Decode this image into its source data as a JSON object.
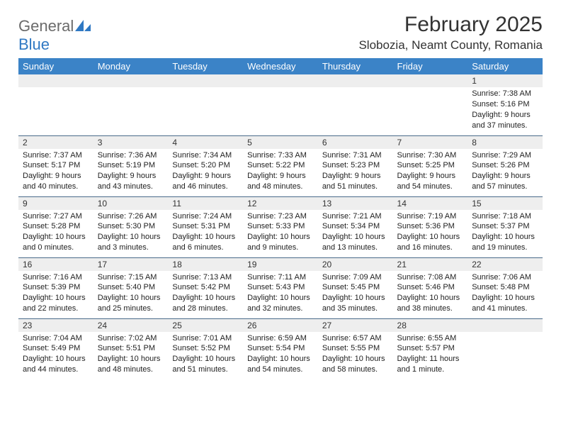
{
  "brand": {
    "general": "General",
    "blue": "Blue"
  },
  "title": {
    "month": "February 2025",
    "location": "Slobozia, Neamt County, Romania"
  },
  "colors": {
    "header_bg": "#3b83c7",
    "header_text": "#ffffff",
    "daynum_bg": "#eeeeee",
    "row_border": "#4a6b8a",
    "logo_gray": "#6b6b6b",
    "logo_blue": "#2f78c3"
  },
  "weekdays": [
    "Sunday",
    "Monday",
    "Tuesday",
    "Wednesday",
    "Thursday",
    "Friday",
    "Saturday"
  ],
  "weeks": [
    [
      {
        "n": "",
        "lines": []
      },
      {
        "n": "",
        "lines": []
      },
      {
        "n": "",
        "lines": []
      },
      {
        "n": "",
        "lines": []
      },
      {
        "n": "",
        "lines": []
      },
      {
        "n": "",
        "lines": []
      },
      {
        "n": "1",
        "lines": [
          "Sunrise: 7:38 AM",
          "Sunset: 5:16 PM",
          "Daylight: 9 hours and 37 minutes."
        ]
      }
    ],
    [
      {
        "n": "2",
        "lines": [
          "Sunrise: 7:37 AM",
          "Sunset: 5:17 PM",
          "Daylight: 9 hours and 40 minutes."
        ]
      },
      {
        "n": "3",
        "lines": [
          "Sunrise: 7:36 AM",
          "Sunset: 5:19 PM",
          "Daylight: 9 hours and 43 minutes."
        ]
      },
      {
        "n": "4",
        "lines": [
          "Sunrise: 7:34 AM",
          "Sunset: 5:20 PM",
          "Daylight: 9 hours and 46 minutes."
        ]
      },
      {
        "n": "5",
        "lines": [
          "Sunrise: 7:33 AM",
          "Sunset: 5:22 PM",
          "Daylight: 9 hours and 48 minutes."
        ]
      },
      {
        "n": "6",
        "lines": [
          "Sunrise: 7:31 AM",
          "Sunset: 5:23 PM",
          "Daylight: 9 hours and 51 minutes."
        ]
      },
      {
        "n": "7",
        "lines": [
          "Sunrise: 7:30 AM",
          "Sunset: 5:25 PM",
          "Daylight: 9 hours and 54 minutes."
        ]
      },
      {
        "n": "8",
        "lines": [
          "Sunrise: 7:29 AM",
          "Sunset: 5:26 PM",
          "Daylight: 9 hours and 57 minutes."
        ]
      }
    ],
    [
      {
        "n": "9",
        "lines": [
          "Sunrise: 7:27 AM",
          "Sunset: 5:28 PM",
          "Daylight: 10 hours and 0 minutes."
        ]
      },
      {
        "n": "10",
        "lines": [
          "Sunrise: 7:26 AM",
          "Sunset: 5:30 PM",
          "Daylight: 10 hours and 3 minutes."
        ]
      },
      {
        "n": "11",
        "lines": [
          "Sunrise: 7:24 AM",
          "Sunset: 5:31 PM",
          "Daylight: 10 hours and 6 minutes."
        ]
      },
      {
        "n": "12",
        "lines": [
          "Sunrise: 7:23 AM",
          "Sunset: 5:33 PM",
          "Daylight: 10 hours and 9 minutes."
        ]
      },
      {
        "n": "13",
        "lines": [
          "Sunrise: 7:21 AM",
          "Sunset: 5:34 PM",
          "Daylight: 10 hours and 13 minutes."
        ]
      },
      {
        "n": "14",
        "lines": [
          "Sunrise: 7:19 AM",
          "Sunset: 5:36 PM",
          "Daylight: 10 hours and 16 minutes."
        ]
      },
      {
        "n": "15",
        "lines": [
          "Sunrise: 7:18 AM",
          "Sunset: 5:37 PM",
          "Daylight: 10 hours and 19 minutes."
        ]
      }
    ],
    [
      {
        "n": "16",
        "lines": [
          "Sunrise: 7:16 AM",
          "Sunset: 5:39 PM",
          "Daylight: 10 hours and 22 minutes."
        ]
      },
      {
        "n": "17",
        "lines": [
          "Sunrise: 7:15 AM",
          "Sunset: 5:40 PM",
          "Daylight: 10 hours and 25 minutes."
        ]
      },
      {
        "n": "18",
        "lines": [
          "Sunrise: 7:13 AM",
          "Sunset: 5:42 PM",
          "Daylight: 10 hours and 28 minutes."
        ]
      },
      {
        "n": "19",
        "lines": [
          "Sunrise: 7:11 AM",
          "Sunset: 5:43 PM",
          "Daylight: 10 hours and 32 minutes."
        ]
      },
      {
        "n": "20",
        "lines": [
          "Sunrise: 7:09 AM",
          "Sunset: 5:45 PM",
          "Daylight: 10 hours and 35 minutes."
        ]
      },
      {
        "n": "21",
        "lines": [
          "Sunrise: 7:08 AM",
          "Sunset: 5:46 PM",
          "Daylight: 10 hours and 38 minutes."
        ]
      },
      {
        "n": "22",
        "lines": [
          "Sunrise: 7:06 AM",
          "Sunset: 5:48 PM",
          "Daylight: 10 hours and 41 minutes."
        ]
      }
    ],
    [
      {
        "n": "23",
        "lines": [
          "Sunrise: 7:04 AM",
          "Sunset: 5:49 PM",
          "Daylight: 10 hours and 44 minutes."
        ]
      },
      {
        "n": "24",
        "lines": [
          "Sunrise: 7:02 AM",
          "Sunset: 5:51 PM",
          "Daylight: 10 hours and 48 minutes."
        ]
      },
      {
        "n": "25",
        "lines": [
          "Sunrise: 7:01 AM",
          "Sunset: 5:52 PM",
          "Daylight: 10 hours and 51 minutes."
        ]
      },
      {
        "n": "26",
        "lines": [
          "Sunrise: 6:59 AM",
          "Sunset: 5:54 PM",
          "Daylight: 10 hours and 54 minutes."
        ]
      },
      {
        "n": "27",
        "lines": [
          "Sunrise: 6:57 AM",
          "Sunset: 5:55 PM",
          "Daylight: 10 hours and 58 minutes."
        ]
      },
      {
        "n": "28",
        "lines": [
          "Sunrise: 6:55 AM",
          "Sunset: 5:57 PM",
          "Daylight: 11 hours and 1 minute."
        ]
      },
      {
        "n": "",
        "lines": []
      }
    ]
  ]
}
